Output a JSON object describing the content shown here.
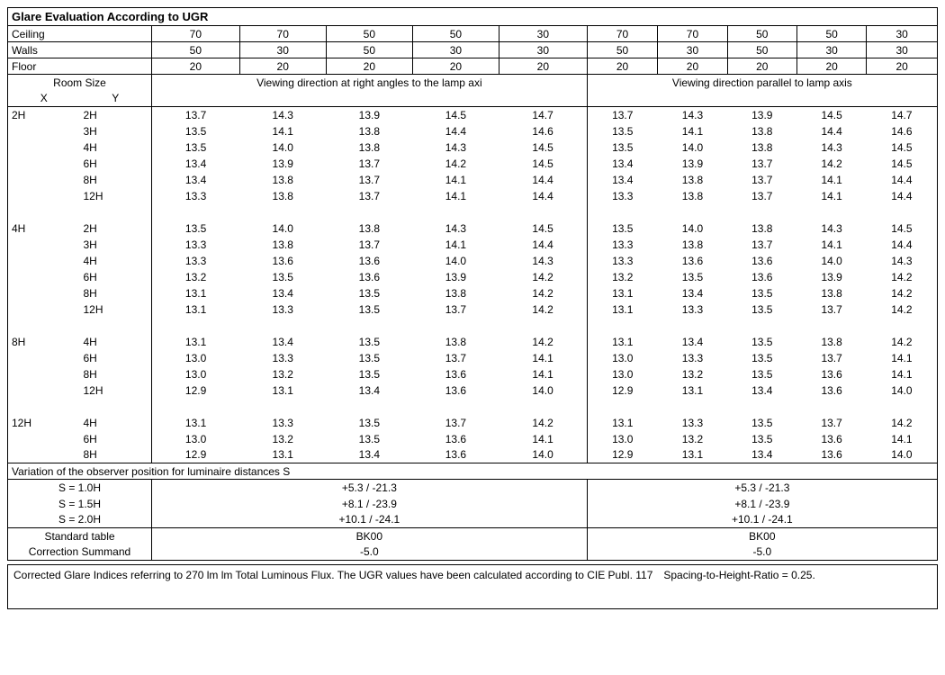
{
  "title": "Glare Evaluation According to UGR",
  "header_rows": {
    "Ceiling": [
      "70",
      "70",
      "50",
      "50",
      "30",
      "70",
      "70",
      "50",
      "50",
      "30"
    ],
    "Walls": [
      "50",
      "30",
      "50",
      "30",
      "30",
      "50",
      "30",
      "50",
      "30",
      "30"
    ],
    "Floor": [
      "20",
      "20",
      "20",
      "20",
      "20",
      "20",
      "20",
      "20",
      "20",
      "20"
    ]
  },
  "room_size_label": "Room Size",
  "x_label": "X",
  "y_label": "Y",
  "direction_left": "Viewing direction at right angles to the lamp axi",
  "direction_right": "Viewing direction parallel to lamp axis",
  "groups": [
    {
      "x": "2H",
      "rows": [
        {
          "y": "2H",
          "vals": [
            "13.7",
            "14.3",
            "13.9",
            "14.5",
            "14.7",
            "13.7",
            "14.3",
            "13.9",
            "14.5",
            "14.7"
          ]
        },
        {
          "y": "3H",
          "vals": [
            "13.5",
            "14.1",
            "13.8",
            "14.4",
            "14.6",
            "13.5",
            "14.1",
            "13.8",
            "14.4",
            "14.6"
          ]
        },
        {
          "y": "4H",
          "vals": [
            "13.5",
            "14.0",
            "13.8",
            "14.3",
            "14.5",
            "13.5",
            "14.0",
            "13.8",
            "14.3",
            "14.5"
          ]
        },
        {
          "y": "6H",
          "vals": [
            "13.4",
            "13.9",
            "13.7",
            "14.2",
            "14.5",
            "13.4",
            "13.9",
            "13.7",
            "14.2",
            "14.5"
          ]
        },
        {
          "y": "8H",
          "vals": [
            "13.4",
            "13.8",
            "13.7",
            "14.1",
            "14.4",
            "13.4",
            "13.8",
            "13.7",
            "14.1",
            "14.4"
          ]
        },
        {
          "y": "12H",
          "vals": [
            "13.3",
            "13.8",
            "13.7",
            "14.1",
            "14.4",
            "13.3",
            "13.8",
            "13.7",
            "14.1",
            "14.4"
          ]
        }
      ]
    },
    {
      "x": "4H",
      "rows": [
        {
          "y": "2H",
          "vals": [
            "13.5",
            "14.0",
            "13.8",
            "14.3",
            "14.5",
            "13.5",
            "14.0",
            "13.8",
            "14.3",
            "14.5"
          ]
        },
        {
          "y": "3H",
          "vals": [
            "13.3",
            "13.8",
            "13.7",
            "14.1",
            "14.4",
            "13.3",
            "13.8",
            "13.7",
            "14.1",
            "14.4"
          ]
        },
        {
          "y": "4H",
          "vals": [
            "13.3",
            "13.6",
            "13.6",
            "14.0",
            "14.3",
            "13.3",
            "13.6",
            "13.6",
            "14.0",
            "14.3"
          ]
        },
        {
          "y": "6H",
          "vals": [
            "13.2",
            "13.5",
            "13.6",
            "13.9",
            "14.2",
            "13.2",
            "13.5",
            "13.6",
            "13.9",
            "14.2"
          ]
        },
        {
          "y": "8H",
          "vals": [
            "13.1",
            "13.4",
            "13.5",
            "13.8",
            "14.2",
            "13.1",
            "13.4",
            "13.5",
            "13.8",
            "14.2"
          ]
        },
        {
          "y": "12H",
          "vals": [
            "13.1",
            "13.3",
            "13.5",
            "13.7",
            "14.2",
            "13.1",
            "13.3",
            "13.5",
            "13.7",
            "14.2"
          ]
        }
      ]
    },
    {
      "x": "8H",
      "rows": [
        {
          "y": "4H",
          "vals": [
            "13.1",
            "13.4",
            "13.5",
            "13.8",
            "14.2",
            "13.1",
            "13.4",
            "13.5",
            "13.8",
            "14.2"
          ]
        },
        {
          "y": "6H",
          "vals": [
            "13.0",
            "13.3",
            "13.5",
            "13.7",
            "14.1",
            "13.0",
            "13.3",
            "13.5",
            "13.7",
            "14.1"
          ]
        },
        {
          "y": "8H",
          "vals": [
            "13.0",
            "13.2",
            "13.5",
            "13.6",
            "14.1",
            "13.0",
            "13.2",
            "13.5",
            "13.6",
            "14.1"
          ]
        },
        {
          "y": "12H",
          "vals": [
            "12.9",
            "13.1",
            "13.4",
            "13.6",
            "14.0",
            "12.9",
            "13.1",
            "13.4",
            "13.6",
            "14.0"
          ]
        }
      ]
    },
    {
      "x": "12H",
      "rows": [
        {
          "y": "4H",
          "vals": [
            "13.1",
            "13.3",
            "13.5",
            "13.7",
            "14.2",
            "13.1",
            "13.3",
            "13.5",
            "13.7",
            "14.2"
          ]
        },
        {
          "y": "6H",
          "vals": [
            "13.0",
            "13.2",
            "13.5",
            "13.6",
            "14.1",
            "13.0",
            "13.2",
            "13.5",
            "13.6",
            "14.1"
          ]
        },
        {
          "y": "8H",
          "vals": [
            "12.9",
            "13.1",
            "13.4",
            "13.6",
            "14.0",
            "12.9",
            "13.1",
            "13.4",
            "13.6",
            "14.0"
          ]
        }
      ]
    }
  ],
  "variation_label": "Variation of the observer position for luminaire distances S",
  "variation_rows": [
    {
      "s": "S = 1.0H",
      "left": "+5.3 / -21.3",
      "right": "+5.3 / -21.3"
    },
    {
      "s": "S = 1.5H",
      "left": "+8.1 / -23.9",
      "right": "+8.1 / -23.9"
    },
    {
      "s": "S = 2.0H",
      "left": "+10.1 / -24.1",
      "right": "+10.1 / -24.1"
    }
  ],
  "std_table_label": "Standard table",
  "std_table_left": "BK00",
  "std_table_right": "BK00",
  "corr_label": "Correction Summand",
  "corr_left": "-5.0",
  "corr_right": "-5.0",
  "footnote": "Corrected Glare Indices referring to 270 lm lm Total Luminous Flux. The UGR values have been calculated according to CIE Publ. 117 Spacing-to-Height-Ratio = 0.25."
}
